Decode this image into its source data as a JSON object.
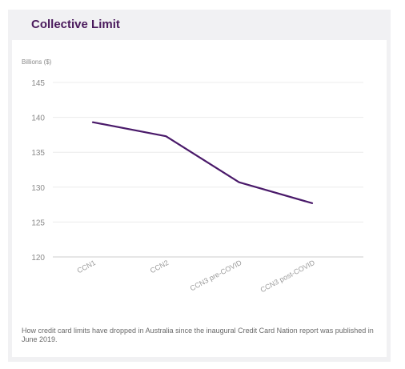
{
  "title": "Collective Limit",
  "caption": "How credit card limits have dropped in Australia since the inaugural Credit Card Nation report was published in June 2019.",
  "colors": {
    "line": "#4a1a6a",
    "title": "#4a1a5c",
    "grid": "#ececec",
    "axis": "#cccccc",
    "tick": "#8a8a8a"
  },
  "chart_data": {
    "type": "line",
    "title": "Collective Limit",
    "ylabel": "Billions ($)",
    "xlabel": "",
    "categories": [
      "CCN1",
      "CCN2",
      "CCN3 pre-COVID",
      "CCN3 post-COVID"
    ],
    "series": [
      {
        "values": [
          139.3,
          137.3,
          130.7,
          127.7
        ]
      }
    ],
    "ylim": [
      120,
      145
    ],
    "yticks": [
      120,
      125,
      130,
      135,
      140,
      145
    ],
    "grid": true,
    "legend": "none"
  }
}
